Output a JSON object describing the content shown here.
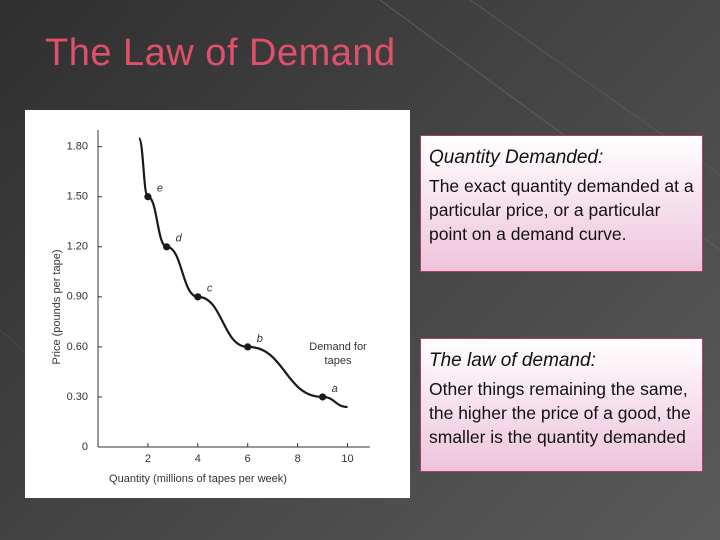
{
  "title": "The Law of Demand",
  "boxes": [
    {
      "heading": "Quantity Demanded:",
      "text": "The exact quantity demanded at a particular price, or a particular point on a demand curve."
    },
    {
      "heading": "The law of demand:",
      "text": "Other things remaining the same, the higher the price of a good, the smaller is the quantity demanded"
    }
  ],
  "chart_data": {
    "type": "line",
    "x_label": "Quantity (millions of tapes per week)",
    "y_label": "Price (pounds per tape)",
    "xlim": [
      0,
      10.9
    ],
    "ylim": [
      0,
      1.9
    ],
    "xticks": [
      2,
      4,
      6,
      8,
      10
    ],
    "yticks": [
      0,
      {
        "value": 0.3,
        "label": "0.30"
      },
      {
        "value": 0.6,
        "label": "0.60"
      },
      {
        "value": 0.9,
        "label": "0.90"
      },
      {
        "value": 1.2,
        "label": "1.20"
      },
      {
        "value": 1.5,
        "label": "1.50"
      },
      {
        "value": 1.8,
        "label": "1.80"
      }
    ],
    "series": [
      {
        "name": "Demand for tapes",
        "color": "#1a1a1a",
        "x": [
          1.64,
          2,
          2.75,
          4,
          6,
          9,
          10
        ],
        "values": [
          1.85,
          1.5,
          1.2,
          0.9,
          0.6,
          0.3,
          0.24
        ]
      }
    ],
    "points": {
      "labels": [
        "e",
        "d",
        "c",
        "b",
        "a"
      ],
      "x": [
        2,
        2.75,
        4,
        6,
        9
      ],
      "values": [
        1.5,
        1.2,
        0.9,
        0.6,
        0.3
      ],
      "color": "#1a1a1a"
    }
  }
}
